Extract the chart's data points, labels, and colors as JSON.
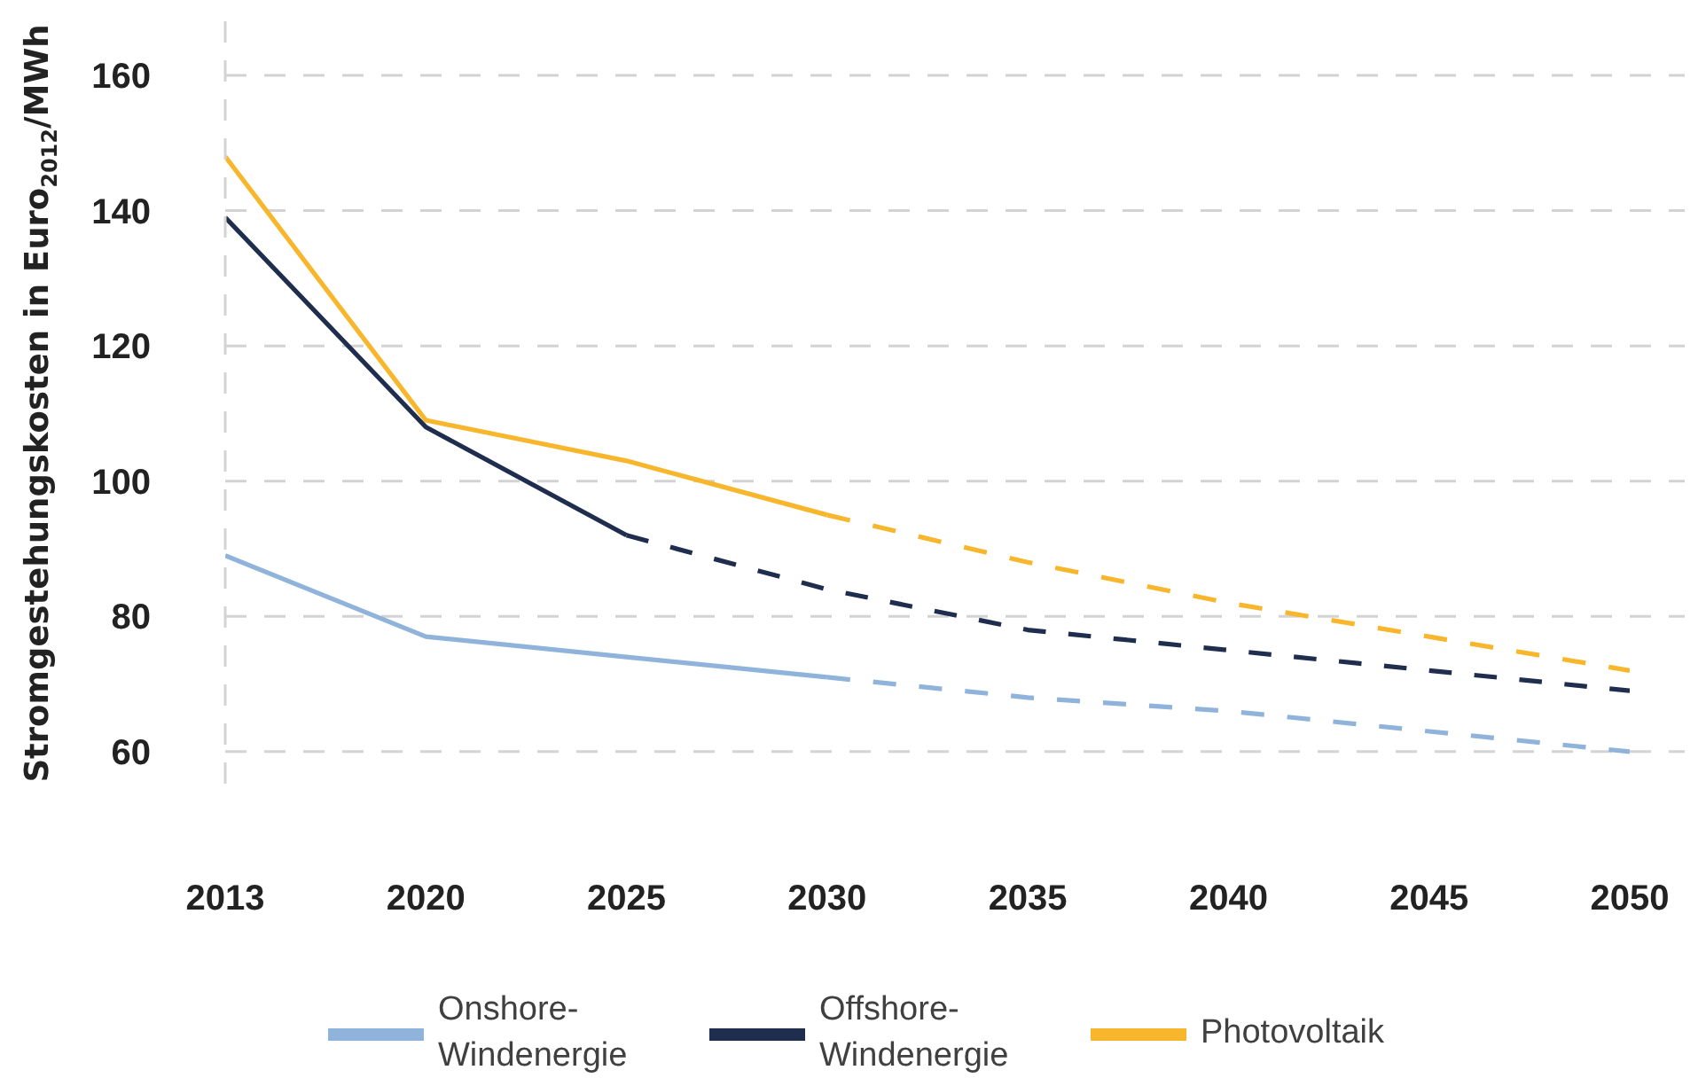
{
  "chart_data": {
    "type": "line",
    "ylabel": "Stromgestehungskosten in Euro$_{2012}$/MWh",
    "categories": [
      "2013",
      "2020",
      "2025",
      "2030",
      "2035",
      "2040",
      "2045",
      "2050"
    ],
    "series": [
      {
        "name": "Onshore-Windenergie",
        "color": "#8fb3da",
        "line_style": "solid",
        "values": [
          89,
          77,
          74,
          71,
          null,
          null,
          null,
          null
        ]
      },
      {
        "color": "#8fb3da",
        "line_style": "dashed",
        "values": [
          null,
          null,
          null,
          71,
          68,
          66,
          63,
          60
        ]
      },
      {
        "name": "Offshore-Windenergie",
        "color": "#1f2d4e",
        "line_style": "solid",
        "values": [
          139,
          108,
          92,
          null,
          null,
          null,
          null,
          null
        ]
      },
      {
        "color": "#1f2d4e",
        "line_style": "dashed",
        "values": [
          null,
          null,
          92,
          84,
          78,
          75,
          72,
          69
        ]
      },
      {
        "name": "Photovoltaik",
        "color": "#f8b62d",
        "line_style": "solid",
        "values": [
          148,
          109,
          103,
          95,
          null,
          null,
          null,
          null
        ]
      },
      {
        "color": "#f8b62d",
        "line_style": "dashed",
        "values": [
          null,
          null,
          null,
          95,
          88,
          82,
          77,
          72
        ]
      }
    ],
    "ylim": [
      55,
      168
    ],
    "yticks": [
      60,
      80,
      100,
      120,
      140,
      160
    ],
    "grid": "y",
    "legend": "bottom",
    "marker": "none"
  }
}
